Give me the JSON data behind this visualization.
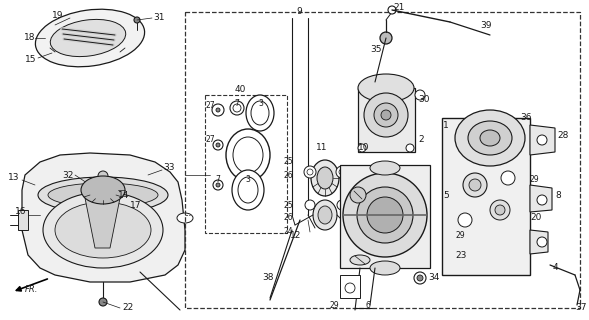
{
  "bg_color": "#ffffff",
  "line_color": "#1a1a1a",
  "fig_width": 5.89,
  "fig_height": 3.2,
  "dpi": 100
}
